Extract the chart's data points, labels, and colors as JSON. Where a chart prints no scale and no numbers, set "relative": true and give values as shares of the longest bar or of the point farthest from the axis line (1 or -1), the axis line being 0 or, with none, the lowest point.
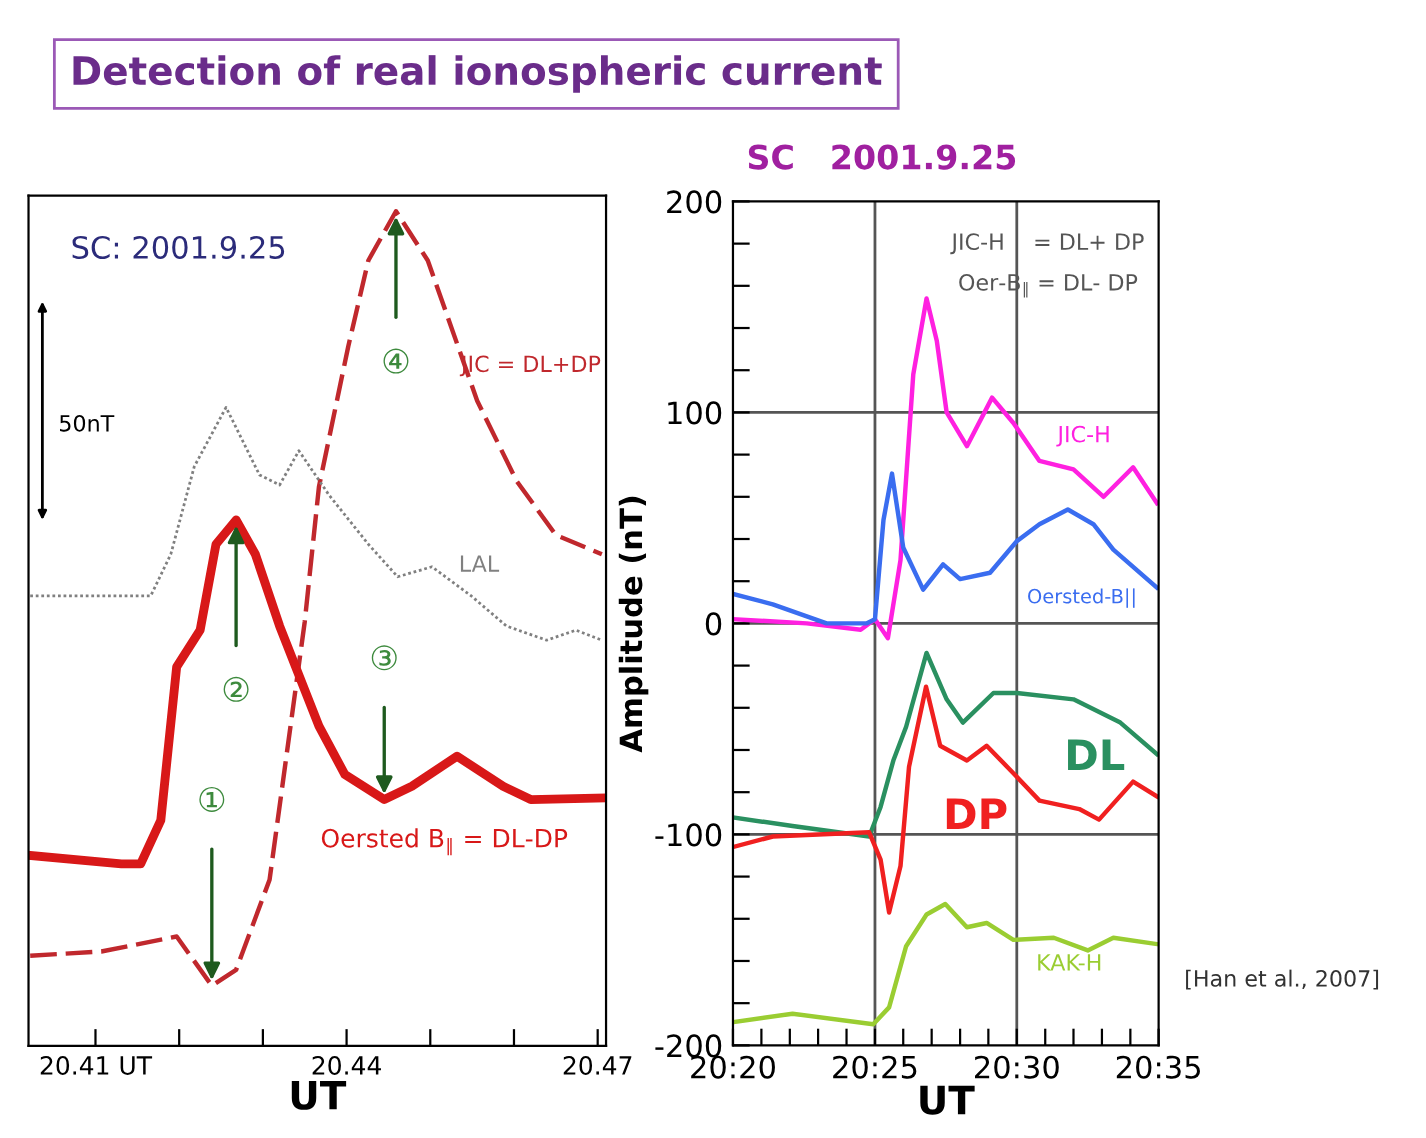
{
  "chart_data": [
    {
      "type": "line",
      "title": "Detection of real ionospheric current",
      "xlabel": "UT",
      "relative": true,
      "tick_labels": "x",
      "xlim": [
        20.402,
        20.471
      ],
      "xticks": [
        {
          "value": 20.41,
          "label": "20.41 UT"
        },
        {
          "value": 20.42,
          "label": null
        },
        {
          "value": 20.43,
          "label": null
        },
        20.44,
        {
          "value": 20.45,
          "label": null
        },
        {
          "value": 20.46,
          "label": null
        },
        20.47
      ],
      "series": [
        {
          "name": "JIC = DL+DP",
          "color": "#c0282d",
          "line_style": "dashed",
          "x": [
            20.4022,
            20.4107,
            20.4197,
            20.4239,
            20.4268,
            20.4308,
            20.435,
            20.4367,
            20.4402,
            20.4426,
            20.4459,
            20.4497,
            20.4556,
            20.4603,
            20.465,
            20.4705
          ],
          "values": [
            0.108,
            0.113,
            0.131,
            0.072,
            0.091,
            0.199,
            0.508,
            0.67,
            0.838,
            0.941,
            1.0,
            0.941,
            0.773,
            0.677,
            0.612,
            0.589
          ]
        },
        {
          "name": "LAL",
          "color": "#808080",
          "line_style": "dotted",
          "x": [
            20.4022,
            20.4166,
            20.419,
            20.4218,
            20.4256,
            20.4296,
            20.432,
            20.4343,
            20.4379,
            20.4426,
            20.4461,
            20.4502,
            20.4549,
            20.4591,
            20.4639,
            20.4674,
            20.4705
          ],
          "values": [
            0.539,
            0.539,
            0.589,
            0.694,
            0.765,
            0.684,
            0.672,
            0.713,
            0.66,
            0.601,
            0.562,
            0.574,
            0.539,
            0.503,
            0.486,
            0.498,
            0.486
          ]
        },
        {
          "name": "Oersted B$_{∥}$ = DL-DP",
          "color": "#d81818",
          "line_style": "solid",
          "x": [
            20.4022,
            20.4131,
            20.4154,
            20.4178,
            20.4197,
            20.4225,
            20.4244,
            20.4268,
            20.4291,
            20.432,
            20.4367,
            20.4398,
            20.4445,
            20.4478,
            20.4532,
            20.4587,
            20.462,
            20.4705
          ],
          "values": [
            0.228,
            0.218,
            0.218,
            0.27,
            0.454,
            0.498,
            0.601,
            0.63,
            0.589,
            0.503,
            0.383,
            0.325,
            0.295,
            0.311,
            0.347,
            0.311,
            0.295,
            0.297
          ]
        }
      ],
      "annotations": [
        "SC: 2001.9.25",
        "50nT",
        {
          "text": "①",
          "x": 20.4239,
          "y": 0.072
        },
        {
          "text": "②",
          "x": 20.4268,
          "y": 0.63
        },
        {
          "text": "③",
          "x": 20.4445,
          "y": 0.295
        },
        {
          "text": "④",
          "x": 20.4459,
          "y": 1.0
        }
      ]
    },
    {
      "type": "line",
      "title": "SC   2001.9.25",
      "xlabel": "UT",
      "ylabel": "Amplitude (nT)",
      "xlim": [
        20.3333,
        20.5833
      ],
      "ylim": [
        -200,
        200
      ],
      "xticks": [
        {
          "value": 20.3333,
          "label": "20:20"
        },
        {
          "value": 20.35,
          "label": null
        },
        {
          "value": 20.3667,
          "label": null
        },
        {
          "value": 20.3833,
          "label": null
        },
        {
          "value": 20.4,
          "label": null
        },
        {
          "value": 20.4167,
          "label": "20:25"
        },
        {
          "value": 20.4333,
          "label": null
        },
        {
          "value": 20.45,
          "label": null
        },
        {
          "value": 20.4667,
          "label": null
        },
        {
          "value": 20.4833,
          "label": null
        },
        {
          "value": 20.5,
          "label": "20:30"
        },
        {
          "value": 20.5167,
          "label": null
        },
        {
          "value": 20.5333,
          "label": null
        },
        {
          "value": 20.55,
          "label": null
        },
        {
          "value": 20.5667,
          "label": null
        },
        {
          "value": 20.5833,
          "label": "20:35"
        }
      ],
      "yticks": [
        -200,
        {
          "value": -180,
          "label": null
        },
        {
          "value": -160,
          "label": null
        },
        {
          "value": -140,
          "label": null
        },
        {
          "value": -120,
          "label": null
        },
        -100,
        {
          "value": -80,
          "label": null
        },
        {
          "value": -60,
          "label": null
        },
        {
          "value": -40,
          "label": null
        },
        {
          "value": -20,
          "label": null
        },
        0,
        {
          "value": 20,
          "label": null
        },
        {
          "value": 40,
          "label": null
        },
        {
          "value": 60,
          "label": null
        },
        {
          "value": 80,
          "label": null
        },
        100,
        {
          "value": 120,
          "label": null
        },
        {
          "value": 140,
          "label": null
        },
        {
          "value": 160,
          "label": null
        },
        {
          "value": 180,
          "label": null
        },
        200
      ],
      "ref_lines": [
        {
          "axis": "y",
          "value": 100,
          "color": "#555555"
        },
        {
          "axis": "y",
          "value": 0,
          "color": "#555555"
        },
        {
          "axis": "y",
          "value": -100,
          "color": "#555555"
        },
        {
          "axis": "x",
          "value": 20.4167,
          "color": "#555555"
        },
        {
          "axis": "x",
          "value": 20.5,
          "color": "#555555"
        }
      ],
      "series": [
        {
          "name": "JIC-H",
          "color": "#ff20e0",
          "x": [
            20.3333,
            20.3767,
            20.4083,
            20.4167,
            20.4243,
            20.4317,
            20.4392,
            20.447,
            20.453,
            20.4588,
            20.4707,
            20.4855,
            20.498,
            20.5133,
            20.5333,
            20.551,
            20.5683,
            20.5823
          ],
          "values": [
            2,
            0,
            -3,
            2,
            -7,
            30,
            118,
            154,
            134,
            100,
            84,
            107,
            95,
            77,
            73,
            60,
            74,
            57
          ]
        },
        {
          "name": "Oersted-B||",
          "color": "#3a6df0",
          "x": [
            20.3333,
            20.3567,
            20.3883,
            20.4117,
            20.4167,
            20.4217,
            20.4267,
            20.4333,
            20.445,
            20.4567,
            20.4667,
            20.4843,
            20.5,
            20.5133,
            20.53,
            20.545,
            20.5567,
            20.5823
          ],
          "values": [
            14,
            9,
            0,
            0,
            2,
            49,
            71,
            36,
            16,
            28,
            21,
            24,
            39,
            47,
            54,
            47,
            35,
            17
          ]
        },
        {
          "name": "DL",
          "color": "#2a9060",
          "x": [
            20.3333,
            20.3683,
            20.4133,
            20.42,
            20.4275,
            20.435,
            20.447,
            20.4588,
            20.4683,
            20.4863,
            20.5,
            20.5333,
            20.5608,
            20.5823
          ],
          "values": [
            -92,
            -96,
            -101,
            -87,
            -65,
            -49,
            -14,
            -36,
            -47,
            -33,
            -33,
            -36,
            -47,
            -62
          ]
        },
        {
          "name": "DP",
          "color": "#f02020",
          "x": [
            20.3333,
            20.3567,
            20.4133,
            20.42,
            20.425,
            20.4317,
            20.4367,
            20.4467,
            20.455,
            20.4707,
            20.4823,
            20.498,
            20.5133,
            20.5367,
            20.5483,
            20.5683,
            20.5823
          ],
          "values": [
            -106,
            -101,
            -99,
            -112,
            -137,
            -115,
            -68,
            -30,
            -58,
            -65,
            -58,
            -71,
            -84,
            -88,
            -93,
            -75,
            -82
          ]
        },
        {
          "name": "KAK-H",
          "color": "#9acd32",
          "x": [
            20.3333,
            20.3683,
            20.4157,
            20.425,
            20.435,
            20.447,
            20.458,
            20.4707,
            20.4823,
            20.498,
            20.5217,
            20.5417,
            20.5567,
            20.5823
          ],
          "values": [
            -189,
            -185,
            -190,
            -182,
            -153,
            -138,
            -133,
            -144,
            -142,
            -150,
            -149,
            -155,
            -149,
            -152
          ]
        }
      ],
      "annotations": [
        "JIC-H    = DL+ DP",
        "Oer-B$_{∥}$ = DL- DP",
        "[Han et al., 2007]"
      ]
    }
  ]
}
